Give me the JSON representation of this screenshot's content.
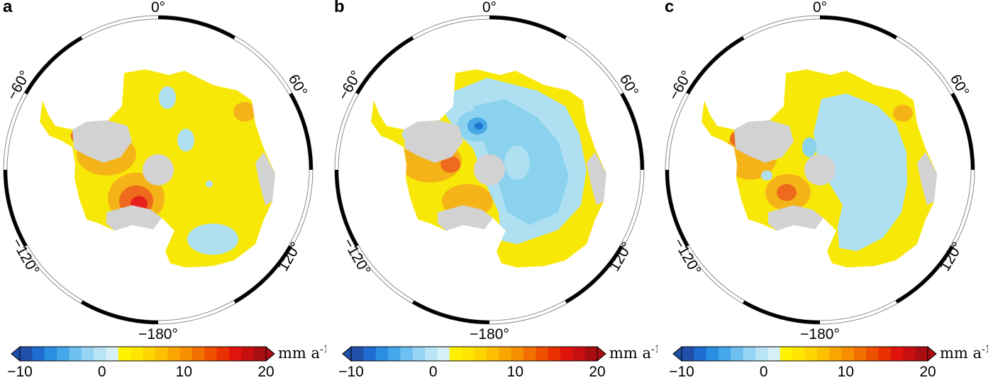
{
  "panels": [
    {
      "letter": "a",
      "scenario": "a"
    },
    {
      "letter": "b",
      "scenario": "b"
    },
    {
      "letter": "c",
      "scenario": "c"
    }
  ],
  "longitude_labels": {
    "top": "0°",
    "bottom": "−180°",
    "upper_left": "−60°",
    "upper_right": "60°",
    "lower_left": "−120°",
    "lower_right": "120°"
  },
  "colorbar": {
    "unit": "mm a",
    "unit_exponent": "-1",
    "tick_labels": [
      "−10",
      "0",
      "10",
      "20"
    ],
    "ticks": [
      -10,
      0,
      10,
      20
    ],
    "range": [
      -10,
      20
    ],
    "extend": "both",
    "colors": [
      "#1f4fa8",
      "#1f6cd0",
      "#2a8fe0",
      "#45a8ea",
      "#6ec0f0",
      "#96d4f3",
      "#b8e4f6",
      "#d6f0f8",
      "#fff100",
      "#fee600",
      "#fdd500",
      "#fcc000",
      "#f9a700",
      "#f68e00",
      "#f27000",
      "#ee5000",
      "#e93000",
      "#e0140c",
      "#c80f10",
      "#a80d12"
    ]
  },
  "map_colors": {
    "ice_shelf": "#d2d2d2",
    "positive_low": "#f8e808",
    "positive_mid": "#f4b418",
    "positive_high": "#ee6a1c",
    "positive_max": "#e8201a",
    "negative_low": "#aee0f2",
    "negative_mid": "#8ad2ee",
    "negative_high": "#46a8e4",
    "negative_max": "#1c78d4"
  }
}
